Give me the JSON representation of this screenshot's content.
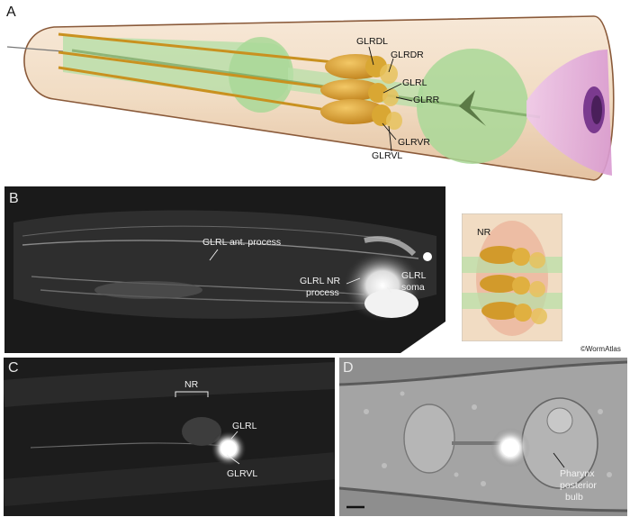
{
  "panels": {
    "a": {
      "letter": "A",
      "labels": {
        "glrdl": "GLRDL",
        "glrdr": "GLRDR",
        "glrl": "GLRL",
        "glrr": "GLRR",
        "glrvr": "GLRVR",
        "glrvl": "GLRVL"
      }
    },
    "b": {
      "letter": "B",
      "labels": {
        "ant_process": "GLRL ant. process",
        "nr_process_l1": "GLRL NR",
        "nr_process_l2": "process",
        "soma_l1": "GLRL",
        "soma_l2": "soma"
      },
      "inset_label": "NR"
    },
    "c": {
      "letter": "C",
      "labels": {
        "nr": "NR",
        "glrl": "GLRL",
        "glrvl": "GLRVL"
      }
    },
    "d": {
      "letter": "D",
      "labels": {
        "line1": "Pharynx",
        "line2": "posterior",
        "line3": "bulb"
      }
    }
  },
  "credit": "©WormAtlas",
  "colors": {
    "body_tan": "#f1dcc3",
    "neuron_gold": "#d29a2b",
    "pharynx_green": "#b7dfa7",
    "pharynx_pink": "#e7b8e1",
    "micrograph_dark": "#1a1a1a"
  }
}
